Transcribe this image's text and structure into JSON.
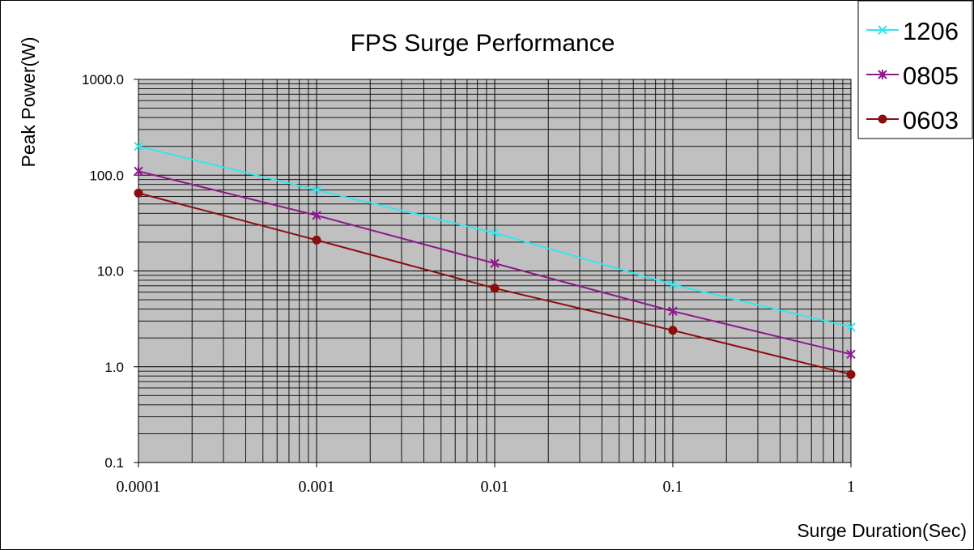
{
  "chart_data": {
    "type": "line",
    "title": "FPS Surge Performance",
    "xlabel": "Surge Duration(Sec)",
    "ylabel": "Peak Power(W)",
    "x_scale": "log",
    "y_scale": "log",
    "xlim": [
      0.0001,
      1
    ],
    "ylim": [
      0.1,
      1000
    ],
    "x_ticks": [
      "0.0001",
      "0.001",
      "0.01",
      "0.1",
      "1"
    ],
    "y_ticks": [
      "1000.0",
      "100.0",
      "10.0",
      "1.0",
      "0.1"
    ],
    "grid": true,
    "legend_position": "top-right",
    "plot_background": "#c0c0c0",
    "x": [
      0.0001,
      0.001,
      0.01,
      0.1,
      1
    ],
    "series": [
      {
        "name": "1206",
        "color": "#33e6ec",
        "marker": "x",
        "values": [
          200,
          70,
          25,
          7.2,
          2.6
        ]
      },
      {
        "name": "0805",
        "color": "#8b1a8b",
        "marker": "star",
        "values": [
          110,
          38,
          12,
          3.8,
          1.35
        ]
      },
      {
        "name": "0603",
        "color": "#8b0d0d",
        "marker": "circle",
        "values": [
          65,
          21,
          6.6,
          2.4,
          0.83
        ]
      }
    ]
  }
}
